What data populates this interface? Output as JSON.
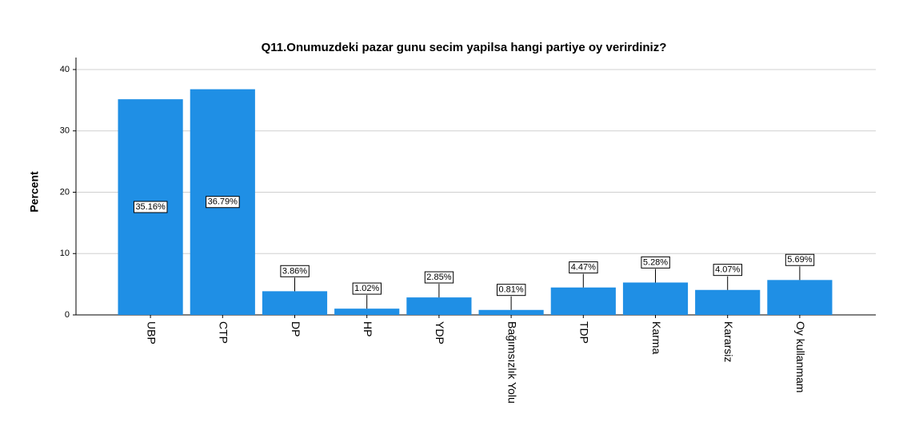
{
  "chart_data": {
    "type": "bar",
    "title": "Q11.Onumuzdeki pazar gunu secim yapilsa hangi partiye oy verirdiniz?",
    "y_label": "Percent",
    "categories": [
      "UBP",
      "CTP",
      "DP",
      "HP",
      "YDP",
      "Bağımsızlık Yolu",
      "TDP",
      "Karma",
      "Kararsiz",
      "Oy kullanmam"
    ],
    "values": [
      35.16,
      36.79,
      3.86,
      1.02,
      2.85,
      0.81,
      4.47,
      5.28,
      4.07,
      5.69
    ],
    "value_labels": [
      "35.16%",
      "36.79%",
      "3.86%",
      "1.02%",
      "2.85%",
      "0.81%",
      "4.47%",
      "5.28%",
      "4.07%",
      "5.69%"
    ],
    "color": "#1f8fe5",
    "ylim": [
      0,
      40
    ],
    "yticks": [
      0,
      10,
      20,
      30,
      40
    ],
    "grid": true
  }
}
